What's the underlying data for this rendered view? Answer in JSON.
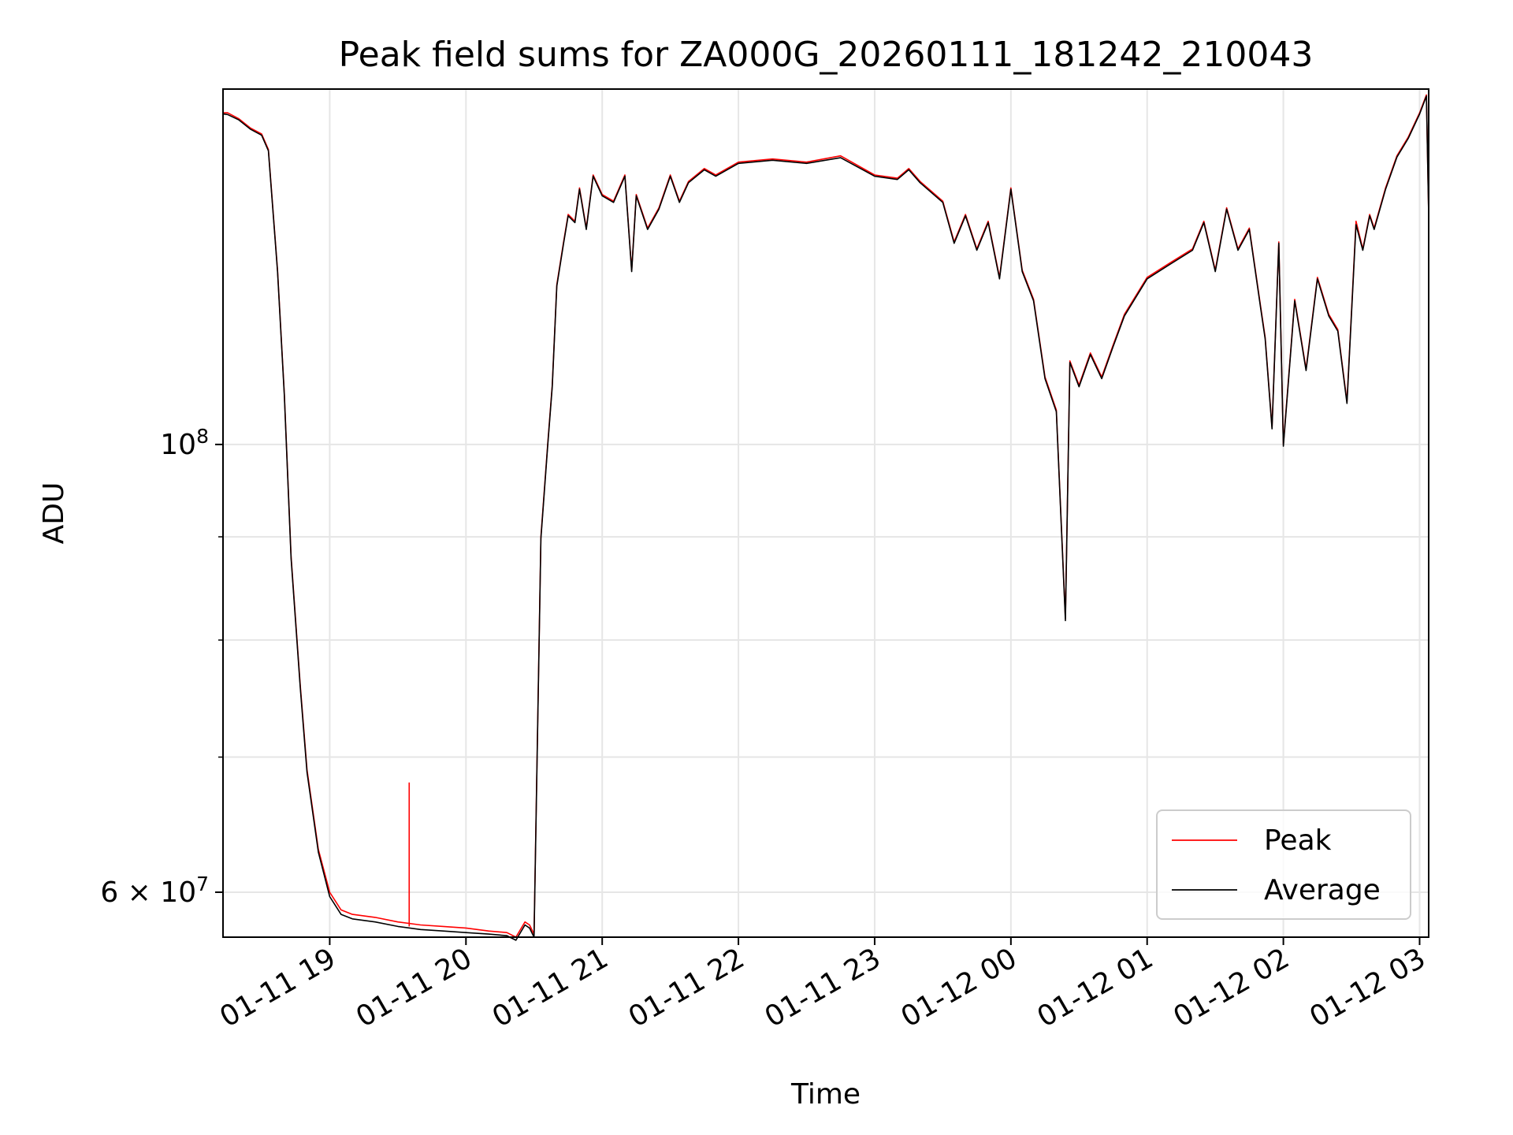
{
  "chart_data": {
    "type": "line",
    "title": "Peak field sums for ZA000G_20260111_181242_210043",
    "xlabel": "Time",
    "ylabel": "ADU",
    "yscale": "log",
    "grid": true,
    "legend_position": "lower-right",
    "x_tick_labels": [
      "01-11 19",
      "01-11 20",
      "01-11 21",
      "01-11 22",
      "01-11 23",
      "01-12 00",
      "01-12 01",
      "01-12 02",
      "01-12 03"
    ],
    "x_ticks": [
      "2026-01-11 19:00",
      "2026-01-11 20:00",
      "2026-01-11 21:00",
      "2026-01-11 22:00",
      "2026-01-11 23:00",
      "2026-01-12 00:00",
      "2026-01-12 01:00",
      "2026-01-12 02:00",
      "2026-01-12 03:00"
    ],
    "y_ticks": [
      {
        "value": 100000000,
        "base": "10",
        "exp": "8"
      },
      {
        "value": 60000000,
        "base": "6 × 10",
        "exp": "7"
      }
    ],
    "xlim": [
      "2026-01-11 18:13",
      "2026-01-12 03:04"
    ],
    "ylim": [
      57000000,
      150000000
    ],
    "series": [
      {
        "name": "Peak",
        "color": "#ff0000",
        "x": [
          "2026-01-11 18:13",
          "2026-01-11 18:15",
          "2026-01-11 18:20",
          "2026-01-11 18:25",
          "2026-01-11 18:30",
          "2026-01-11 18:33",
          "2026-01-11 18:37",
          "2026-01-11 18:40",
          "2026-01-11 18:43",
          "2026-01-11 18:47",
          "2026-01-11 18:50",
          "2026-01-11 18:55",
          "2026-01-11 19:00",
          "2026-01-11 19:05",
          "2026-01-11 19:10",
          "2026-01-11 19:20",
          "2026-01-11 19:30",
          "2026-01-11 19:40",
          "2026-01-11 19:50",
          "2026-01-11 20:00",
          "2026-01-11 20:10",
          "2026-01-11 20:18",
          "2026-01-11 20:22",
          "2026-01-11 20:26",
          "2026-01-11 20:28",
          "2026-01-11 20:30",
          "2026-01-11 20:33",
          "2026-01-11 20:36",
          "2026-01-11 20:38",
          "2026-01-11 20:40",
          "2026-01-11 20:43",
          "2026-01-11 20:45",
          "2026-01-11 20:48",
          "2026-01-11 20:50",
          "2026-01-11 20:53",
          "2026-01-11 20:56",
          "2026-01-11 21:00",
          "2026-01-11 21:05",
          "2026-01-11 21:10",
          "2026-01-11 21:13",
          "2026-01-11 21:15",
          "2026-01-11 21:20",
          "2026-01-11 21:25",
          "2026-01-11 21:30",
          "2026-01-11 21:34",
          "2026-01-11 21:38",
          "2026-01-11 21:45",
          "2026-01-11 21:50",
          "2026-01-11 22:00",
          "2026-01-11 22:15",
          "2026-01-11 22:30",
          "2026-01-11 22:45",
          "2026-01-11 23:00",
          "2026-01-11 23:10",
          "2026-01-11 23:15",
          "2026-01-11 23:20",
          "2026-01-11 23:30",
          "2026-01-11 23:35",
          "2026-01-11 23:40",
          "2026-01-11 23:45",
          "2026-01-11 23:50",
          "2026-01-11 23:55",
          "2026-01-12 00:00",
          "2026-01-12 00:05",
          "2026-01-12 00:10",
          "2026-01-12 00:15",
          "2026-01-12 00:20",
          "2026-01-12 00:24",
          "2026-01-12 00:26",
          "2026-01-12 00:30",
          "2026-01-12 00:35",
          "2026-01-12 00:40",
          "2026-01-12 00:45",
          "2026-01-12 00:50",
          "2026-01-12 01:00",
          "2026-01-12 01:10",
          "2026-01-12 01:20",
          "2026-01-12 01:25",
          "2026-01-12 01:30",
          "2026-01-12 01:35",
          "2026-01-12 01:40",
          "2026-01-12 01:45",
          "2026-01-12 01:50",
          "2026-01-12 01:52",
          "2026-01-12 01:55",
          "2026-01-12 01:58",
          "2026-01-12 02:00",
          "2026-01-12 02:05",
          "2026-01-12 02:10",
          "2026-01-12 02:15",
          "2026-01-12 02:20",
          "2026-01-12 02:24",
          "2026-01-12 02:28",
          "2026-01-12 02:32",
          "2026-01-12 02:35",
          "2026-01-12 02:38",
          "2026-01-12 02:40",
          "2026-01-12 02:45",
          "2026-01-12 02:50",
          "2026-01-12 02:55",
          "2026-01-12 03:00",
          "2026-01-12 03:03",
          "2026-01-12 03:04"
        ],
        "y": [
          146000000,
          146000000,
          145000000,
          143500000,
          142500000,
          140000000,
          122000000,
          106000000,
          88000000,
          76000000,
          69000000,
          63000000,
          60000000,
          58800000,
          58500000,
          58300000,
          58000000,
          57800000,
          57700000,
          57600000,
          57400000,
          57300000,
          57000000,
          58000000,
          57800000,
          57200000,
          90000000,
          100000000,
          107000000,
          120000000,
          126000000,
          130000000,
          129000000,
          134000000,
          128000000,
          136000000,
          133000000,
          132000000,
          136000000,
          122000000,
          133000000,
          128000000,
          131000000,
          136000000,
          132000000,
          135000000,
          137000000,
          136000000,
          138000000,
          138500000,
          138000000,
          139000000,
          136000000,
          135500000,
          137000000,
          135000000,
          132000000,
          126000000,
          130000000,
          125000000,
          129000000,
          121000000,
          134000000,
          122000000,
          118000000,
          108000000,
          104000000,
          82000000,
          110000000,
          107000000,
          111000000,
          108000000,
          112000000,
          116000000,
          121000000,
          123000000,
          125000000,
          129000000,
          122000000,
          131000000,
          125000000,
          128000000,
          117000000,
          113000000,
          102000000,
          126000000,
          100000000,
          118000000,
          109000000,
          121000000,
          116000000,
          114000000,
          105000000,
          129000000,
          125000000,
          130000000,
          128000000,
          134000000,
          139000000,
          142000000,
          146000000,
          149000000,
          130000000
        ]
      },
      {
        "name": "Average",
        "color": "#000000",
        "x": [
          "2026-01-11 18:13",
          "2026-01-11 18:15",
          "2026-01-11 18:20",
          "2026-01-11 18:25",
          "2026-01-11 18:30",
          "2026-01-11 18:33",
          "2026-01-11 18:37",
          "2026-01-11 18:40",
          "2026-01-11 18:43",
          "2026-01-11 18:47",
          "2026-01-11 18:50",
          "2026-01-11 18:55",
          "2026-01-11 19:00",
          "2026-01-11 19:05",
          "2026-01-11 19:10",
          "2026-01-11 19:20",
          "2026-01-11 19:30",
          "2026-01-11 19:40",
          "2026-01-11 19:50",
          "2026-01-11 20:00",
          "2026-01-11 20:10",
          "2026-01-11 20:18",
          "2026-01-11 20:22",
          "2026-01-11 20:26",
          "2026-01-11 20:28",
          "2026-01-11 20:30",
          "2026-01-11 20:33",
          "2026-01-11 20:36",
          "2026-01-11 20:38",
          "2026-01-11 20:40",
          "2026-01-11 20:43",
          "2026-01-11 20:45",
          "2026-01-11 20:48",
          "2026-01-11 20:50",
          "2026-01-11 20:53",
          "2026-01-11 20:56",
          "2026-01-11 21:00",
          "2026-01-11 21:05",
          "2026-01-11 21:10",
          "2026-01-11 21:13",
          "2026-01-11 21:15",
          "2026-01-11 21:20",
          "2026-01-11 21:25",
          "2026-01-11 21:30",
          "2026-01-11 21:34",
          "2026-01-11 21:38",
          "2026-01-11 21:45",
          "2026-01-11 21:50",
          "2026-01-11 22:00",
          "2026-01-11 22:15",
          "2026-01-11 22:30",
          "2026-01-11 22:45",
          "2026-01-11 23:00",
          "2026-01-11 23:10",
          "2026-01-11 23:15",
          "2026-01-11 23:20",
          "2026-01-11 23:30",
          "2026-01-11 23:35",
          "2026-01-11 23:40",
          "2026-01-11 23:45",
          "2026-01-11 23:50",
          "2026-01-11 23:55",
          "2026-01-12 00:00",
          "2026-01-12 00:05",
          "2026-01-12 00:10",
          "2026-01-12 00:15",
          "2026-01-12 00:20",
          "2026-01-12 00:24",
          "2026-01-12 00:26",
          "2026-01-12 00:30",
          "2026-01-12 00:35",
          "2026-01-12 00:40",
          "2026-01-12 00:45",
          "2026-01-12 00:50",
          "2026-01-12 01:00",
          "2026-01-12 01:10",
          "2026-01-12 01:20",
          "2026-01-12 01:25",
          "2026-01-12 01:30",
          "2026-01-12 01:35",
          "2026-01-12 01:40",
          "2026-01-12 01:45",
          "2026-01-12 01:50",
          "2026-01-12 01:52",
          "2026-01-12 01:55",
          "2026-01-12 01:58",
          "2026-01-12 02:00",
          "2026-01-12 02:05",
          "2026-01-12 02:10",
          "2026-01-12 02:15",
          "2026-01-12 02:20",
          "2026-01-12 02:24",
          "2026-01-12 02:28",
          "2026-01-12 02:32",
          "2026-01-12 02:35",
          "2026-01-12 02:38",
          "2026-01-12 02:40",
          "2026-01-12 02:45",
          "2026-01-12 02:50",
          "2026-01-12 02:55",
          "2026-01-12 03:00",
          "2026-01-12 03:03",
          "2026-01-12 03:04"
        ],
        "y": [
          145800000,
          145700000,
          144800000,
          143300000,
          142300000,
          139800000,
          121800000,
          105800000,
          87800000,
          75800000,
          68800000,
          62800000,
          59700000,
          58500000,
          58200000,
          58000000,
          57700000,
          57500000,
          57400000,
          57300000,
          57200000,
          57100000,
          56800000,
          57800000,
          57600000,
          57000000,
          89800000,
          99800000,
          106800000,
          119800000,
          125800000,
          129800000,
          128800000,
          133800000,
          127800000,
          135800000,
          132800000,
          131800000,
          135800000,
          121800000,
          132800000,
          127800000,
          130800000,
          135800000,
          131800000,
          134800000,
          136800000,
          135800000,
          137800000,
          138300000,
          137800000,
          138700000,
          135800000,
          135300000,
          136800000,
          134800000,
          131800000,
          125800000,
          129800000,
          124800000,
          128800000,
          120800000,
          133800000,
          121800000,
          117800000,
          107800000,
          103800000,
          81800000,
          109800000,
          106800000,
          110800000,
          107800000,
          111800000,
          115800000,
          120800000,
          122800000,
          124800000,
          128800000,
          121800000,
          130800000,
          124800000,
          127800000,
          116800000,
          112800000,
          101800000,
          125800000,
          99800000,
          117800000,
          108800000,
          120800000,
          115800000,
          113800000,
          104800000,
          128500000,
          124800000,
          129800000,
          127800000,
          133800000,
          138800000,
          141800000,
          145800000,
          148800000,
          129800000
        ]
      }
    ],
    "annotations": [
      {
        "series": "Peak",
        "x": "2026-01-11 19:35",
        "y": 68000000,
        "note_kind": "spike"
      }
    ]
  }
}
